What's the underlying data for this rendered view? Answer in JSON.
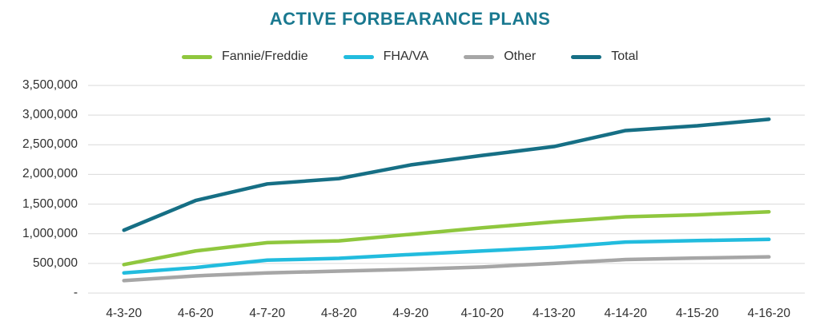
{
  "title": "ACTIVE FORBEARANCE PLANS",
  "colors": {
    "title": "#1A7990",
    "axis_text": "#303030",
    "gridline": "#D9D9D9",
    "background": "#FFFFFF",
    "fannie_freddie": "#8FC73E",
    "fha_va": "#22BCDE",
    "other": "#A6A6A6",
    "total": "#166F85"
  },
  "chart_data": {
    "type": "line",
    "title": "ACTIVE FORBEARANCE PLANS",
    "xlabel": "",
    "ylabel": "",
    "grid": true,
    "legend_position": "top",
    "ylim": [
      0,
      3500000
    ],
    "y_tick_step": 500000,
    "categories": [
      "4-3-20",
      "4-6-20",
      "4-7-20",
      "4-8-20",
      "4-9-20",
      "4-10-20",
      "4-13-20",
      "4-14-20",
      "4-15-20",
      "4-16-20"
    ],
    "y_ticks": {
      "values": [
        0,
        500000,
        1000000,
        1500000,
        2000000,
        2500000,
        3000000,
        3500000
      ],
      "labels": [
        "-",
        "500,000",
        "1,000,000",
        "1,500,000",
        "2,000,000",
        "2,500,000",
        "3,000,000",
        "3,500,000"
      ]
    },
    "series": [
      {
        "name": "Fannie/Freddie",
        "color": "#8FC73E",
        "values": [
          480000,
          710000,
          850000,
          880000,
          990000,
          1100000,
          1200000,
          1285000,
          1320000,
          1370000
        ]
      },
      {
        "name": "FHA/VA",
        "color": "#22BCDE",
        "values": [
          340000,
          430000,
          555000,
          585000,
          650000,
          710000,
          770000,
          860000,
          885000,
          905000
        ]
      },
      {
        "name": "Other",
        "color": "#A6A6A6",
        "values": [
          210000,
          290000,
          340000,
          370000,
          400000,
          440000,
          500000,
          565000,
          590000,
          610000
        ]
      },
      {
        "name": "Total",
        "color": "#166F85",
        "values": [
          1060000,
          1560000,
          1840000,
          1930000,
          2160000,
          2320000,
          2470000,
          2740000,
          2820000,
          2930000
        ]
      }
    ]
  }
}
